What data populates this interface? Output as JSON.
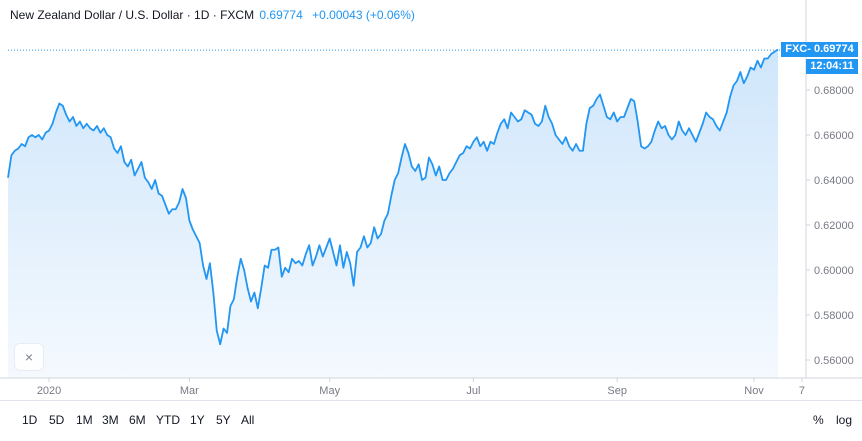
{
  "header": {
    "title": "New Zealand Dollar / U.S. Dollar · 1D · FXCM",
    "price": "0.69774",
    "change": "+0.00043 (+0.06%)"
  },
  "price_tag": "FXC- 0.69774",
  "time_tag": "12:04:11",
  "toolbar": {
    "timeframes": [
      "1D",
      "5D",
      "1M",
      "3M",
      "6M",
      "YTD",
      "1Y",
      "5Y",
      "All"
    ],
    "percent": "%",
    "log": "log"
  },
  "close_glyph": "×",
  "colors": {
    "line": "#2196f3",
    "fill_top": "#cfe6fb",
    "fill_bottom": "#f4f9fe",
    "axis": "#787b86"
  },
  "chart_data": {
    "type": "area",
    "title": "New Zealand Dollar / U.S. Dollar · 1D · FXCM",
    "xlabel": "",
    "ylabel": "",
    "ylim": [
      0.555,
      0.698
    ],
    "y_ticks": [
      "0.56000",
      "0.58000",
      "0.60000",
      "0.62000",
      "0.64000",
      "0.66000",
      "0.68000"
    ],
    "x_ticks": [
      "2020",
      "Mar",
      "May",
      "Jul",
      "Sep",
      "Nov",
      "7"
    ],
    "x_tick_index": [
      12,
      53,
      94,
      136,
      178,
      218,
      232
    ],
    "last_value": 0.69774,
    "grid": false,
    "series": [
      {
        "values": [
          0.641,
          0.651,
          0.653,
          0.654,
          0.656,
          0.655,
          0.659,
          0.66,
          0.659,
          0.66,
          0.658,
          0.661,
          0.662,
          0.665,
          0.67,
          0.674,
          0.673,
          0.669,
          0.666,
          0.668,
          0.664,
          0.666,
          0.663,
          0.665,
          0.663,
          0.662,
          0.664,
          0.661,
          0.663,
          0.66,
          0.659,
          0.654,
          0.652,
          0.655,
          0.648,
          0.646,
          0.649,
          0.642,
          0.645,
          0.648,
          0.641,
          0.639,
          0.636,
          0.64,
          0.634,
          0.633,
          0.629,
          0.625,
          0.627,
          0.627,
          0.63,
          0.636,
          0.632,
          0.622,
          0.618,
          0.615,
          0.612,
          0.602,
          0.596,
          0.603,
          0.59,
          0.573,
          0.567,
          0.574,
          0.572,
          0.584,
          0.587,
          0.597,
          0.605,
          0.6,
          0.592,
          0.586,
          0.59,
          0.583,
          0.592,
          0.602,
          0.601,
          0.609,
          0.609,
          0.61,
          0.597,
          0.601,
          0.599,
          0.605,
          0.603,
          0.604,
          0.602,
          0.607,
          0.611,
          0.602,
          0.606,
          0.611,
          0.606,
          0.61,
          0.614,
          0.608,
          0.602,
          0.611,
          0.601,
          0.608,
          0.603,
          0.593,
          0.608,
          0.61,
          0.615,
          0.61,
          0.612,
          0.619,
          0.614,
          0.616,
          0.622,
          0.625,
          0.633,
          0.64,
          0.643,
          0.65,
          0.656,
          0.652,
          0.646,
          0.644,
          0.647,
          0.64,
          0.641,
          0.65,
          0.647,
          0.642,
          0.646,
          0.64,
          0.64,
          0.643,
          0.645,
          0.648,
          0.651,
          0.652,
          0.655,
          0.654,
          0.657,
          0.659,
          0.655,
          0.657,
          0.653,
          0.657,
          0.656,
          0.661,
          0.665,
          0.667,
          0.663,
          0.67,
          0.668,
          0.666,
          0.667,
          0.671,
          0.67,
          0.669,
          0.665,
          0.664,
          0.666,
          0.673,
          0.668,
          0.665,
          0.66,
          0.658,
          0.656,
          0.659,
          0.655,
          0.653,
          0.656,
          0.653,
          0.653,
          0.665,
          0.672,
          0.673,
          0.676,
          0.678,
          0.673,
          0.668,
          0.667,
          0.67,
          0.666,
          0.668,
          0.668,
          0.672,
          0.676,
          0.675,
          0.666,
          0.655,
          0.654,
          0.655,
          0.657,
          0.662,
          0.666,
          0.663,
          0.664,
          0.66,
          0.658,
          0.66,
          0.666,
          0.662,
          0.66,
          0.663,
          0.66,
          0.657,
          0.661,
          0.665,
          0.67,
          0.668,
          0.667,
          0.664,
          0.662,
          0.666,
          0.67,
          0.677,
          0.682,
          0.684,
          0.688,
          0.683,
          0.686,
          0.69,
          0.689,
          0.693,
          0.69,
          0.694,
          0.694,
          0.696,
          0.697,
          0.698
        ]
      }
    ]
  }
}
